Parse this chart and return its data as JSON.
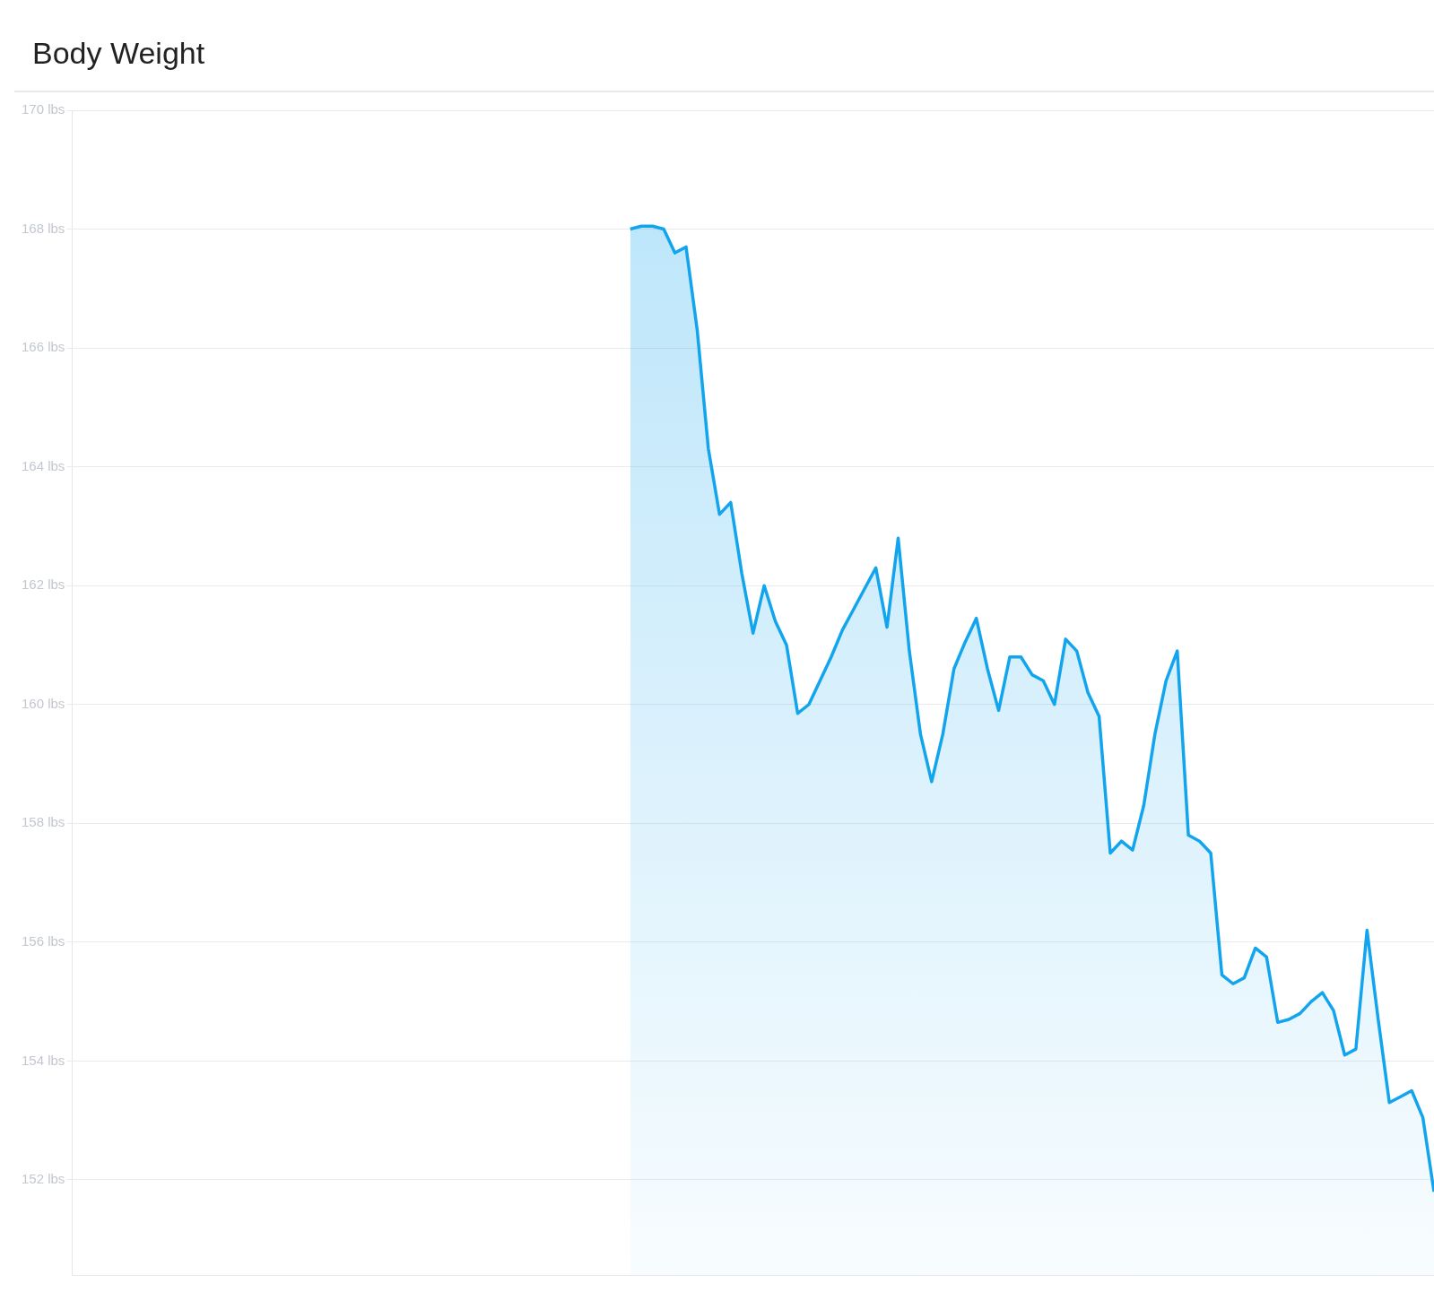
{
  "chart_data": {
    "type": "area",
    "title": "Body Weight",
    "categories": [
      null,
      null,
      null,
      null,
      null,
      null,
      null,
      null,
      null,
      null,
      null,
      null,
      null,
      null,
      null,
      null,
      null,
      null,
      null,
      null,
      null,
      null,
      null,
      null,
      null,
      null,
      null,
      null,
      null,
      null,
      null,
      null,
      null,
      null,
      null,
      null,
      null,
      null,
      null,
      null,
      null,
      null,
      null,
      null,
      null,
      null,
      null,
      null,
      null,
      null,
      null,
      null,
      null,
      null,
      null,
      null,
      null,
      null,
      null,
      null,
      null,
      null,
      null,
      null,
      null,
      null,
      null,
      null,
      null,
      null,
      null,
      null,
      null,
      null,
      null,
      null,
      null,
      null,
      null,
      null,
      null,
      null,
      null,
      null,
      null,
      null,
      null,
      null,
      null,
      null,
      null,
      null,
      null,
      null,
      null,
      null,
      null,
      null,
      null,
      null,
      null,
      null,
      null,
      null,
      null,
      null,
      null,
      null,
      null,
      null,
      null,
      null,
      null,
      null,
      null,
      null,
      null,
      null,
      null,
      null,
      null,
      null,
      null
    ],
    "ylim": [
      150.4,
      170
    ],
    "yticks": [
      {
        "value": 152,
        "label": "152 lbs"
      },
      {
        "value": 154,
        "label": "154 lbs"
      },
      {
        "value": 156,
        "label": "156 lbs"
      },
      {
        "value": 158,
        "label": "158 lbs"
      },
      {
        "value": 160,
        "label": "160 lbs"
      },
      {
        "value": 162,
        "label": "162 lbs"
      },
      {
        "value": 164,
        "label": "164 lbs"
      },
      {
        "value": 166,
        "label": "166 lbs"
      },
      {
        "value": 168,
        "label": "168 lbs"
      },
      {
        "value": 170,
        "label": "170 lbs"
      }
    ],
    "tick_labels": "y",
    "grid": "y",
    "legend": false,
    "marker": "none",
    "line_style": "solid",
    "series": [
      {
        "color": "#12a5ee",
        "values": [
          null,
          null,
          null,
          null,
          null,
          null,
          null,
          null,
          null,
          null,
          null,
          null,
          null,
          null,
          null,
          null,
          null,
          null,
          null,
          null,
          null,
          null,
          null,
          null,
          null,
          null,
          null,
          null,
          null,
          null,
          null,
          null,
          null,
          null,
          null,
          null,
          null,
          null,
          null,
          null,
          null,
          null,
          null,
          null,
          null,
          null,
          null,
          null,
          null,
          null,
          168.0,
          168.05,
          168.05,
          168.0,
          167.6,
          167.7,
          166.3,
          164.3,
          163.2,
          163.4,
          162.2,
          161.2,
          162.0,
          161.4,
          161.0,
          159.85,
          160.0,
          160.4,
          160.8,
          161.25,
          161.6,
          161.95,
          162.3,
          161.3,
          162.8,
          160.9,
          159.5,
          158.7,
          159.5,
          160.6,
          161.05,
          161.45,
          160.6,
          159.9,
          160.8,
          160.8,
          160.5,
          160.4,
          160.0,
          161.1,
          160.9,
          160.2,
          159.8,
          157.5,
          157.7,
          157.55,
          158.3,
          159.5,
          160.4,
          160.9,
          157.8,
          157.7,
          157.5,
          155.45,
          155.3,
          155.4,
          155.9,
          155.75,
          154.65,
          154.7,
          154.8,
          155.0,
          155.15,
          154.85,
          154.1,
          154.2,
          156.2,
          154.7,
          153.3,
          153.4,
          153.5,
          153.05,
          151.8
        ]
      }
    ]
  }
}
